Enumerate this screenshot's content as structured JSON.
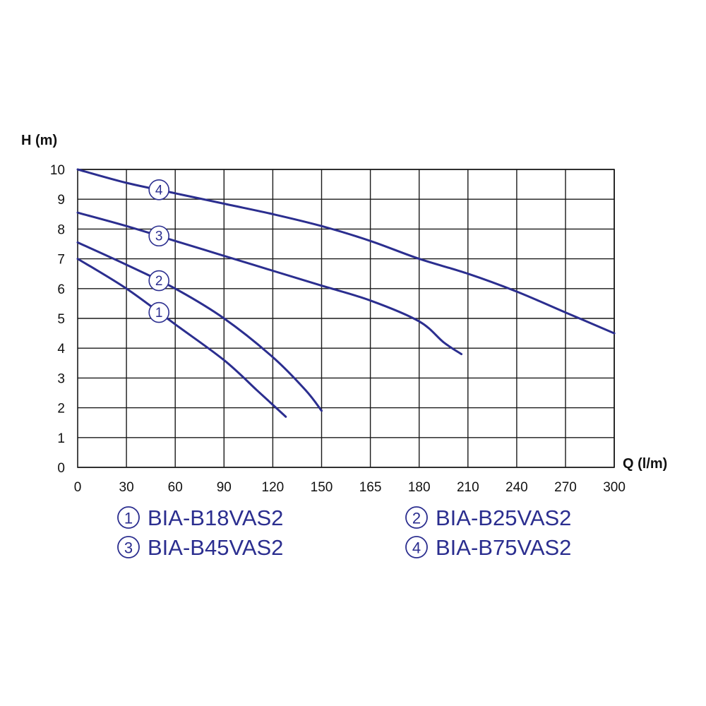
{
  "chart_data": {
    "type": "line",
    "xlabel": "Q (l/m)",
    "ylabel": "H (m)",
    "x_ticks": [
      "0",
      "30",
      "60",
      "90",
      "120",
      "150",
      "165",
      "180",
      "210",
      "240",
      "270",
      "300"
    ],
    "y_ticks": [
      "0",
      "1",
      "2",
      "3",
      "4",
      "5",
      "6",
      "7",
      "8",
      "9",
      "10"
    ],
    "ylim": [
      0,
      10
    ],
    "grid": true,
    "legend": "bottom",
    "line_color": "#2b2e8f",
    "series": [
      {
        "marker": "1",
        "name": "BIA-B18VAS2",
        "points": [
          [
            0,
            7.0
          ],
          [
            30,
            6.0
          ],
          [
            60,
            4.8
          ],
          [
            90,
            3.6
          ],
          [
            110,
            2.6
          ],
          [
            120,
            2.1
          ],
          [
            128,
            1.7
          ]
        ]
      },
      {
        "marker": "2",
        "name": "BIA-B25VAS2",
        "points": [
          [
            0,
            7.55
          ],
          [
            30,
            6.8
          ],
          [
            60,
            6.0
          ],
          [
            90,
            5.0
          ],
          [
            120,
            3.7
          ],
          [
            140,
            2.6
          ],
          [
            150,
            1.9
          ]
        ]
      },
      {
        "marker": "3",
        "name": "BIA-B45VAS2",
        "points": [
          [
            0,
            8.55
          ],
          [
            30,
            8.1
          ],
          [
            60,
            7.6
          ],
          [
            90,
            7.1
          ],
          [
            120,
            6.6
          ],
          [
            150,
            6.1
          ],
          [
            165,
            5.6
          ],
          [
            180,
            4.9
          ],
          [
            195,
            4.2
          ],
          [
            206,
            3.8
          ]
        ]
      },
      {
        "marker": "4",
        "name": "BIA-B75VAS2",
        "points": [
          [
            0,
            10.0
          ],
          [
            30,
            9.55
          ],
          [
            60,
            9.2
          ],
          [
            90,
            8.85
          ],
          [
            120,
            8.5
          ],
          [
            150,
            8.1
          ],
          [
            165,
            7.6
          ],
          [
            180,
            7.0
          ],
          [
            210,
            6.5
          ],
          [
            240,
            5.9
          ],
          [
            270,
            5.2
          ],
          [
            300,
            4.5
          ]
        ]
      }
    ]
  },
  "legend_items": [
    {
      "marker": "1",
      "label": "BIA-B18VAS2"
    },
    {
      "marker": "2",
      "label": "BIA-B25VAS2"
    },
    {
      "marker": "3",
      "label": "BIA-B45VAS2"
    },
    {
      "marker": "4",
      "label": "BIA-B75VAS2"
    }
  ]
}
